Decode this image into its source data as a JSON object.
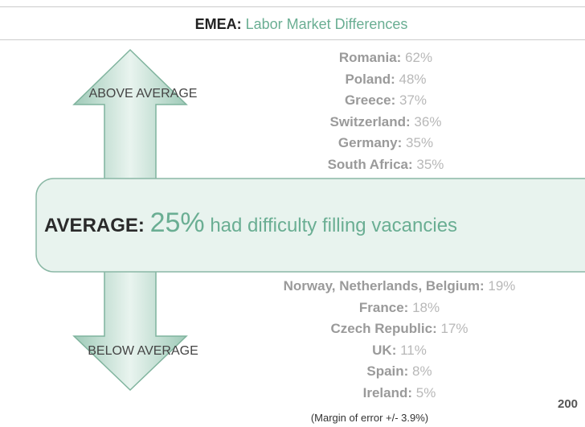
{
  "header": {
    "region": "EMEA:",
    "title": "Labor Market Differences"
  },
  "arrows": {
    "above": "ABOVE AVERAGE",
    "below": "BELOW AVERAGE"
  },
  "above_list": [
    {
      "name": "Romania:",
      "value": "62%"
    },
    {
      "name": "Poland:",
      "value": "48%"
    },
    {
      "name": "Greece:",
      "value": "37%"
    },
    {
      "name": "Switzerland:",
      "value": "36%"
    },
    {
      "name": "Germany:",
      "value": "35%"
    },
    {
      "name": "South Africa:",
      "value": "35%"
    }
  ],
  "average": {
    "label": "AVERAGE:",
    "value": "25%",
    "text": "had difficulty filling vacancies"
  },
  "below_list": [
    {
      "name": "Norway, Netherlands, Belgium:",
      "value": "19%"
    },
    {
      "name": "France:",
      "value": "18%"
    },
    {
      "name": "Czech Republic:",
      "value": "17%"
    },
    {
      "name": "UK:",
      "value": "11%"
    },
    {
      "name": "Spain:",
      "value": "8%"
    },
    {
      "name": "Ireland:",
      "value": "5%"
    }
  ],
  "footnote": "(Margin of error +/- 3.9%)",
  "corner": "200"
}
